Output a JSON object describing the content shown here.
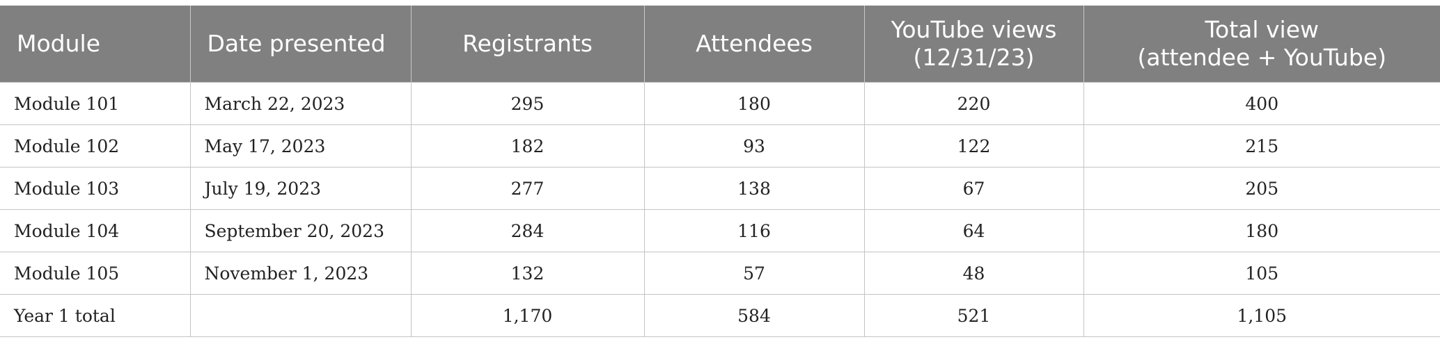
{
  "table": {
    "headers": [
      {
        "lines": [
          "Module"
        ],
        "align": "left"
      },
      {
        "lines": [
          "Date presented"
        ],
        "align": "left"
      },
      {
        "lines": [
          "Registrants"
        ],
        "align": "center"
      },
      {
        "lines": [
          "Attendees"
        ],
        "align": "center"
      },
      {
        "lines": [
          "YouTube views",
          "(12/31/23)"
        ],
        "align": "center"
      },
      {
        "lines": [
          "Total view",
          "(attendee + YouTube)"
        ],
        "align": "center"
      }
    ],
    "rows": [
      [
        "Module 101",
        "March 22, 2023",
        "295",
        "180",
        "220",
        "400"
      ],
      [
        "Module 102",
        "May 17, 2023",
        "182",
        "93",
        "122",
        "215"
      ],
      [
        "Module 103",
        "July 19, 2023",
        "277",
        "138",
        "67",
        "205"
      ],
      [
        "Module 104",
        "September 20, 2023",
        "284",
        "116",
        "64",
        "180"
      ],
      [
        "Module 105",
        "November 1, 2023",
        "132",
        "57",
        "48",
        "105"
      ],
      [
        "Year 1 total",
        "",
        "1,170",
        "584",
        "521",
        "1,105"
      ]
    ]
  },
  "colors": {
    "header_bg": "#808080",
    "header_text": "#ffffff",
    "grid": "#c4c4c4"
  }
}
